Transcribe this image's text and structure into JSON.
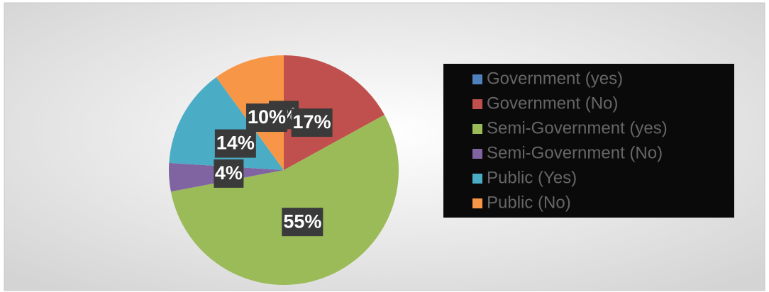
{
  "chart_data": {
    "type": "pie",
    "categories": [
      "Government (yes)",
      "Government (No)",
      "Semi-Government (yes)",
      "Semi-Government (No)",
      "Public (Yes)",
      "Public (No)"
    ],
    "values": [
      0,
      17,
      55,
      4,
      14,
      10
    ],
    "value_labels": [
      "0%",
      "17%",
      "55%",
      "4%",
      "14%",
      "10%"
    ],
    "colors": [
      "#4f81bd",
      "#c0504d",
      "#9bbb59",
      "#8064a2",
      "#4bacc6",
      "#f79646"
    ],
    "legend": "right"
  }
}
